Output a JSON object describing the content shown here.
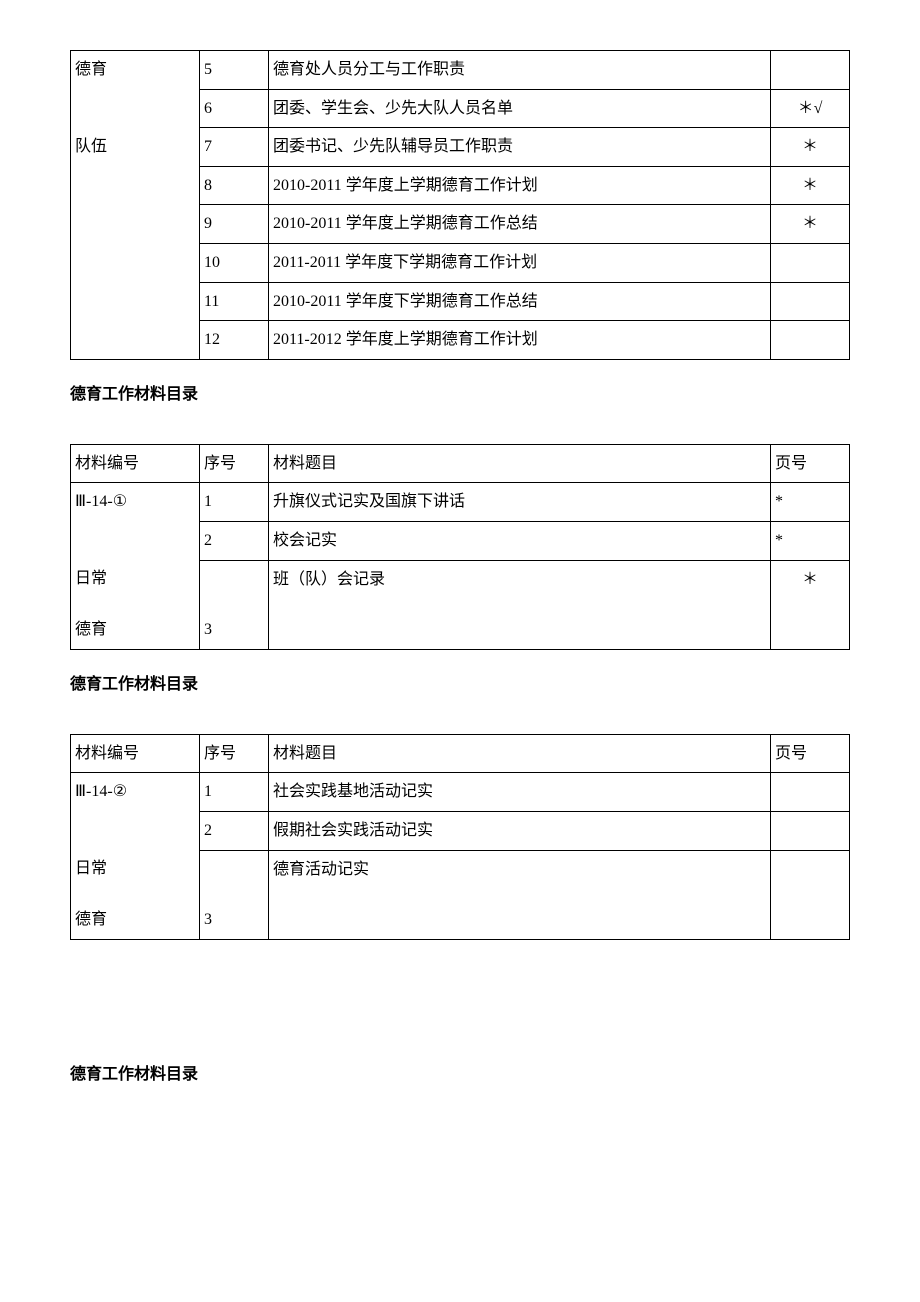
{
  "table1": {
    "categoryLines": [
      "德育",
      "队伍"
    ],
    "rows": [
      {
        "seq": "5",
        "title": "德育处人员分工与工作职责",
        "page": ""
      },
      {
        "seq": "6",
        "title": "团委、学生会、少先大队人员名单",
        "page": "＊√"
      },
      {
        "seq": "7",
        "title": "团委书记、少先队辅导员工作职责",
        "page": "＊"
      },
      {
        "seq": "8",
        "title": "2010-2011 学年度上学期德育工作计划",
        "page": "＊"
      },
      {
        "seq": "9",
        "title": "2010-2011 学年度上学期德育工作总结",
        "page": "＊"
      },
      {
        "seq": "10",
        "title": "2011-2011 学年度下学期德育工作计划",
        "page": ""
      },
      {
        "seq": "11",
        "title": "2010-2011 学年度下学期德育工作总结",
        "page": ""
      },
      {
        "seq": "12",
        "title": "2011-2012 学年度上学期德育工作计划",
        "page": ""
      }
    ]
  },
  "heading": "德育工作材料目录",
  "header": {
    "c1": "材料编号",
    "c2": "序号",
    "c3": "材料题目",
    "c4": "页号"
  },
  "table2": {
    "code": "Ⅲ-14-①",
    "categoryLines": [
      "日常",
      "德育"
    ],
    "rows": [
      {
        "seq": "1",
        "title": "升旗仪式记实及国旗下讲话",
        "page": "*",
        "pageAlign": "left"
      },
      {
        "seq": "2",
        "title": "校会记实",
        "page": "*",
        "pageAlign": "left"
      },
      {
        "seq": "3",
        "title": "班（队）会记录",
        "page": "＊",
        "pageAlign": "center",
        "tall": true
      }
    ]
  },
  "table3": {
    "code": "Ⅲ-14-②",
    "categoryLines": [
      "日常",
      "德育"
    ],
    "rows": [
      {
        "seq": "1",
        "title": "社会实践基地活动记实",
        "page": ""
      },
      {
        "seq": "2",
        "title": "假期社会实践活动记实",
        "page": ""
      },
      {
        "seq": "3",
        "title": "德育活动记实",
        "page": "",
        "tall": true
      }
    ]
  }
}
